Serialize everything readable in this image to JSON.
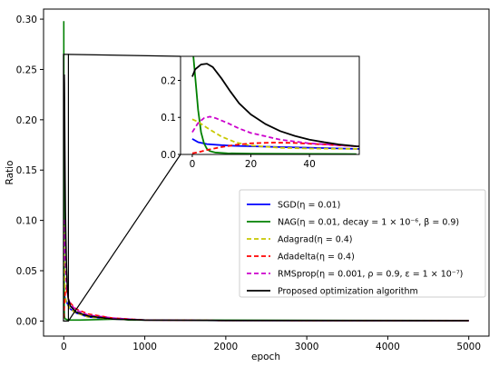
{
  "chart_data": {
    "type": "line",
    "xlabel": "epoch",
    "ylabel": "Ratio",
    "xlim": [
      -250,
      5250
    ],
    "ylim": [
      -0.015,
      0.31
    ],
    "xticks": [
      0,
      1000,
      2000,
      3000,
      4000,
      5000
    ],
    "yticks": [
      0.0,
      0.05,
      0.1,
      0.15,
      0.2,
      0.25,
      0.3
    ],
    "xtick_labels": [
      "0",
      "1000",
      "2000",
      "3000",
      "4000",
      "5000"
    ],
    "ytick_labels": [
      "0.00",
      "0.05",
      "0.10",
      "0.15",
      "0.20",
      "0.25",
      "0.30"
    ],
    "grid": false,
    "legend_position": "center-right",
    "series": [
      {
        "name": "SGD(η = 0.01)",
        "color": "#0000ff",
        "style": "solid",
        "x": [
          0,
          2,
          5,
          10,
          15,
          20,
          30,
          40,
          56,
          80,
          150,
          300,
          600,
          1000,
          2000,
          5000
        ],
        "values": [
          0.042,
          0.033,
          0.028,
          0.025,
          0.023,
          0.022,
          0.02,
          0.018,
          0.015,
          0.012,
          0.008,
          0.004,
          0.002,
          0.001,
          0.0005,
          0.0003
        ]
      },
      {
        "name": "NAG(η = 0.01,  decay = 1 × 10⁻⁶,  β = 0.9)",
        "color": "#008000",
        "style": "solid",
        "x": [
          0,
          1,
          2,
          3,
          4,
          5,
          6,
          8,
          12,
          20,
          56,
          200,
          700,
          800,
          5000
        ],
        "values": [
          0.298,
          0.21,
          0.12,
          0.06,
          0.03,
          0.015,
          0.009,
          0.005,
          0.003,
          0.002,
          0.001,
          0.001,
          0.002,
          0.001,
          0.0005
        ]
      },
      {
        "name": "Adagrad(η = 0.4)",
        "color": "#c8c800",
        "style": "dashed",
        "x": [
          0,
          2,
          5,
          10,
          15,
          20,
          30,
          40,
          56,
          80,
          150,
          300,
          600,
          1000,
          2000,
          5000
        ],
        "values": [
          0.095,
          0.088,
          0.072,
          0.048,
          0.032,
          0.024,
          0.018,
          0.016,
          0.015,
          0.012,
          0.008,
          0.004,
          0.002,
          0.001,
          0.0005,
          0.0003
        ]
      },
      {
        "name": "Adadelta(η = 0.4)",
        "color": "#ff0000",
        "style": "dashed",
        "x": [
          0,
          2,
          5,
          10,
          15,
          20,
          28,
          35,
          45,
          56,
          80,
          150,
          300,
          600,
          1000,
          2000,
          5000
        ],
        "values": [
          0.003,
          0.006,
          0.012,
          0.02,
          0.026,
          0.03,
          0.032,
          0.031,
          0.027,
          0.022,
          0.018,
          0.012,
          0.007,
          0.003,
          0.001,
          0.0005,
          0.0003
        ]
      },
      {
        "name": "RMSprop(η = 0.001, ρ = 0.9, ε = 1 × 10⁻⁷)",
        "color": "#cc00cc",
        "style": "dashed",
        "x": [
          0,
          2,
          4,
          6,
          8,
          12,
          16,
          20,
          30,
          40,
          56,
          80,
          150,
          300,
          600,
          1000,
          2000,
          5000
        ],
        "values": [
          0.06,
          0.085,
          0.098,
          0.102,
          0.098,
          0.085,
          0.07,
          0.058,
          0.04,
          0.03,
          0.022,
          0.017,
          0.011,
          0.006,
          0.003,
          0.001,
          0.0005,
          0.0003
        ]
      },
      {
        "name": "Proposed optimization algorithm",
        "color": "#000000",
        "style": "solid",
        "x": [
          0,
          1,
          3,
          5,
          7,
          10,
          13,
          16,
          20,
          25,
          30,
          35,
          40,
          45,
          50,
          56,
          80,
          150,
          300,
          600,
          1000,
          2000,
          5000
        ],
        "values": [
          0.21,
          0.23,
          0.243,
          0.245,
          0.236,
          0.205,
          0.17,
          0.138,
          0.108,
          0.082,
          0.063,
          0.05,
          0.04,
          0.033,
          0.027,
          0.022,
          0.015,
          0.009,
          0.005,
          0.002,
          0.001,
          0.0005,
          0.0003
        ]
      }
    ],
    "inset": {
      "xlim": [
        -4,
        57
      ],
      "ylim": [
        0.0,
        0.265
      ],
      "xticks": [
        0,
        20,
        40
      ],
      "yticks": [
        0.0,
        0.1,
        0.2
      ],
      "xtick_labels": [
        "0",
        "20",
        "40"
      ],
      "ytick_labels": [
        "0.0",
        "0.1",
        "0.2"
      ]
    }
  }
}
